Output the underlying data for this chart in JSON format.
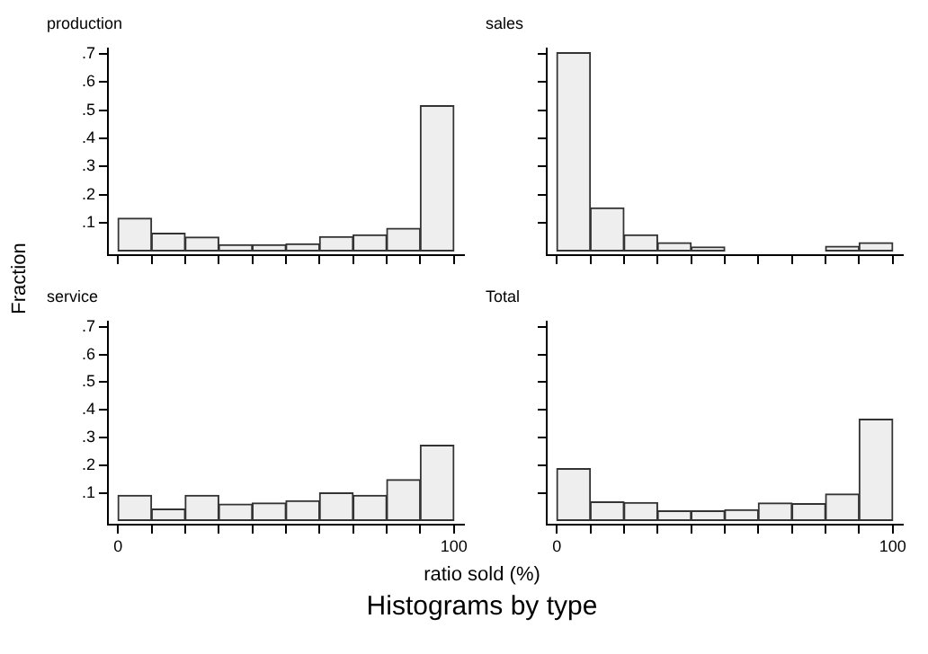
{
  "chart_data": [
    {
      "type": "histogram",
      "title": "production",
      "bins": [
        0,
        10,
        20,
        30,
        40,
        50,
        60,
        70,
        80,
        90,
        100
      ],
      "values": [
        0.116,
        0.063,
        0.049,
        0.022,
        0.022,
        0.025,
        0.051,
        0.057,
        0.08,
        0.516
      ],
      "color": "#eeeeee",
      "xlim": [
        -3,
        103
      ],
      "ylim": [
        -0.015,
        0.72
      ],
      "xticks": [
        {
          "value": 0,
          "label": null
        },
        {
          "value": 10,
          "label": null
        },
        {
          "value": 20,
          "label": null
        },
        {
          "value": 30,
          "label": null
        },
        {
          "value": 40,
          "label": null
        },
        {
          "value": 50,
          "label": null
        },
        {
          "value": 60,
          "label": null
        },
        {
          "value": 70,
          "label": null
        },
        {
          "value": 80,
          "label": null
        },
        {
          "value": 90,
          "label": null
        },
        {
          "value": 100,
          "label": null
        }
      ],
      "yticks": [
        {
          "value": 0.1,
          "label": ".1"
        },
        {
          "value": 0.2,
          "label": ".2"
        },
        {
          "value": 0.3,
          "label": ".3"
        },
        {
          "value": 0.4,
          "label": ".4"
        },
        {
          "value": 0.5,
          "label": ".5"
        },
        {
          "value": 0.6,
          "label": ".6"
        },
        {
          "value": 0.7,
          "label": ".7"
        }
      ],
      "tick_labels": "y",
      "grid": false,
      "legend": false
    },
    {
      "type": "histogram",
      "title": "sales",
      "bins": [
        0,
        10,
        20,
        30,
        40,
        50,
        60,
        70,
        80,
        90,
        100
      ],
      "values": [
        0.704,
        0.153,
        0.057,
        0.029,
        0.014,
        0,
        0,
        0,
        0.016,
        0.029
      ],
      "color": "#eeeeee",
      "xlim": [
        -3,
        103
      ],
      "ylim": [
        -0.015,
        0.72
      ],
      "xticks": [
        {
          "value": 0,
          "label": null
        },
        {
          "value": 10,
          "label": null
        },
        {
          "value": 20,
          "label": null
        },
        {
          "value": 30,
          "label": null
        },
        {
          "value": 40,
          "label": null
        },
        {
          "value": 50,
          "label": null
        },
        {
          "value": 60,
          "label": null
        },
        {
          "value": 70,
          "label": null
        },
        {
          "value": 80,
          "label": null
        },
        {
          "value": 90,
          "label": null
        },
        {
          "value": 100,
          "label": null
        }
      ],
      "yticks": [
        {
          "value": 0.1,
          "label": null
        },
        {
          "value": 0.2,
          "label": null
        },
        {
          "value": 0.3,
          "label": null
        },
        {
          "value": 0.4,
          "label": null
        },
        {
          "value": 0.5,
          "label": null
        },
        {
          "value": 0.6,
          "label": null
        },
        {
          "value": 0.7,
          "label": null
        }
      ],
      "tick_labels": false,
      "grid": false,
      "legend": false
    },
    {
      "type": "histogram",
      "title": "service",
      "ylabel": "Fraction",
      "bins": [
        0,
        10,
        20,
        30,
        40,
        50,
        60,
        70,
        80,
        90,
        100
      ],
      "values": [
        0.091,
        0.041,
        0.091,
        0.059,
        0.063,
        0.071,
        0.1,
        0.091,
        0.148,
        0.272
      ],
      "color": "#eeeeee",
      "xlim": [
        -3,
        103
      ],
      "ylim": [
        -0.015,
        0.72
      ],
      "xticks": [
        {
          "value": 0,
          "label": "0"
        },
        {
          "value": 10,
          "label": null
        },
        {
          "value": 20,
          "label": null
        },
        {
          "value": 30,
          "label": null
        },
        {
          "value": 40,
          "label": null
        },
        {
          "value": 50,
          "label": null
        },
        {
          "value": 60,
          "label": null
        },
        {
          "value": 70,
          "label": null
        },
        {
          "value": 80,
          "label": null
        },
        {
          "value": 90,
          "label": null
        },
        {
          "value": 100,
          "label": "100"
        }
      ],
      "yticks": [
        {
          "value": 0.1,
          "label": ".1"
        },
        {
          "value": 0.2,
          "label": ".2"
        },
        {
          "value": 0.3,
          "label": ".3"
        },
        {
          "value": 0.4,
          "label": ".4"
        },
        {
          "value": 0.5,
          "label": ".5"
        },
        {
          "value": 0.6,
          "label": ".6"
        },
        {
          "value": 0.7,
          "label": ".7"
        }
      ],
      "grid": false,
      "legend": false
    },
    {
      "type": "histogram",
      "title": "Total",
      "xlabel": "ratio sold (%)",
      "annotations": [
        "Histograms by type"
      ],
      "bins": [
        0,
        10,
        20,
        30,
        40,
        50,
        60,
        70,
        80,
        90,
        100
      ],
      "values": [
        0.187,
        0.067,
        0.065,
        0.035,
        0.035,
        0.039,
        0.063,
        0.061,
        0.096,
        0.366
      ],
      "color": "#eeeeee",
      "xlim": [
        -3,
        103
      ],
      "ylim": [
        -0.015,
        0.72
      ],
      "xticks": [
        {
          "value": 0,
          "label": "0"
        },
        {
          "value": 10,
          "label": null
        },
        {
          "value": 20,
          "label": null
        },
        {
          "value": 30,
          "label": null
        },
        {
          "value": 40,
          "label": null
        },
        {
          "value": 50,
          "label": null
        },
        {
          "value": 60,
          "label": null
        },
        {
          "value": 70,
          "label": null
        },
        {
          "value": 80,
          "label": null
        },
        {
          "value": 90,
          "label": null
        },
        {
          "value": 100,
          "label": "100"
        }
      ],
      "yticks": [
        {
          "value": 0.1,
          "label": null
        },
        {
          "value": 0.2,
          "label": null
        },
        {
          "value": 0.3,
          "label": null
        },
        {
          "value": 0.4,
          "label": null
        },
        {
          "value": 0.5,
          "label": null
        },
        {
          "value": 0.6,
          "label": null
        },
        {
          "value": 0.7,
          "label": null
        }
      ],
      "tick_labels": "x",
      "grid": false,
      "legend": false
    }
  ]
}
